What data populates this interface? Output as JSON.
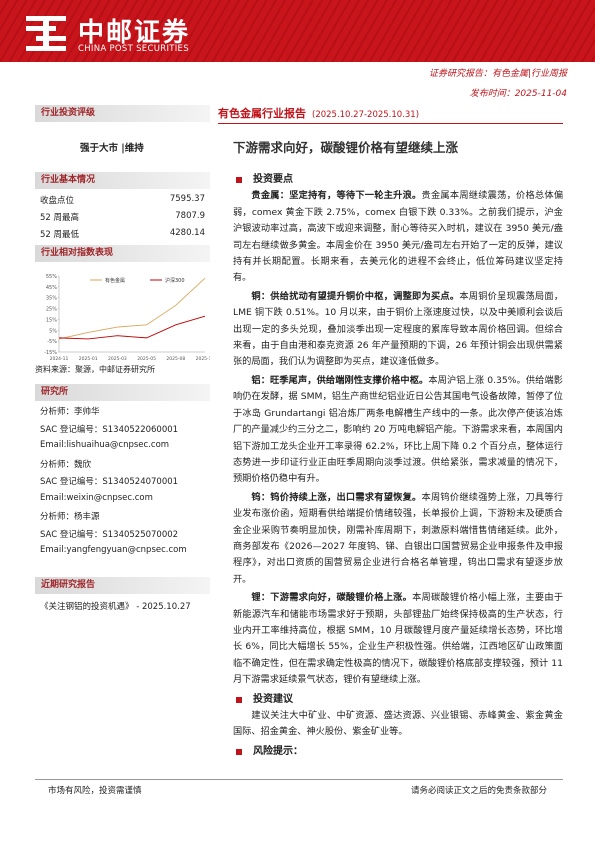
{
  "header": {
    "logo_cn": "中邮证券",
    "logo_en": "CHINA POST SECURITIES",
    "report_type": "证券研究报告：有色金属|行业周报",
    "publish_date": "发布时间：2025-11-04"
  },
  "sidebar": {
    "rating": {
      "heading": "行业投资评级",
      "value": "强于大市 |维持"
    },
    "basics": {
      "heading": "行业基本情况",
      "rows": [
        [
          "收盘点位",
          "7595.37"
        ],
        [
          "52 周最高",
          "7807.9"
        ],
        [
          "52 周最低",
          "4280.14"
        ]
      ]
    },
    "performance": {
      "heading": "行业相对指数表现",
      "source": "资料来源：聚源，中邮证券研究所"
    },
    "analysts": {
      "heading": "研究所",
      "lines": [
        "分析师：李帅华",
        "SAC 登记编号：S1340522060001",
        "Email:lishuaihua@cnpsec.com",
        "分析师：魏欣",
        "SAC 登记编号：S1340524070001",
        "Email:weixin@cnpsec.com",
        "分析师：杨丰源",
        "SAC 登记编号：S1340525070002",
        "Email:yangfengyuan@cnpsec.com"
      ]
    },
    "recent": {
      "heading": "近期研究报告",
      "items": [
        "《关注钢铝的投资机遇》 - 2025.10.27"
      ]
    }
  },
  "chart_data": {
    "type": "line",
    "categories": [
      "2024-11",
      "2025-01",
      "2025-03",
      "2025-05",
      "2025-08",
      "2025-10"
    ],
    "series": [
      {
        "name": "有色金属",
        "color": "#d9a55a",
        "values": [
          -3,
          3,
          8,
          10,
          28,
          53
        ]
      },
      {
        "name": "沪深300",
        "color": "#c00000",
        "values": [
          -2,
          -3,
          0,
          -2,
          10,
          18
        ]
      }
    ],
    "ylim": [
      -15,
      55
    ],
    "yticks": [
      {
        "value": 55,
        "label": "55%"
      },
      {
        "value": 45,
        "label": "45%"
      },
      {
        "value": 35,
        "label": "35%"
      },
      {
        "value": 25,
        "label": "25%"
      },
      {
        "value": 15,
        "label": "15%"
      },
      {
        "value": 5,
        "label": "5%"
      },
      {
        "value": -5,
        "label": "-5%"
      },
      {
        "value": -15,
        "label": "-15%"
      }
    ],
    "legend": "top"
  },
  "main": {
    "bar_title": "有色金属行业报告",
    "bar_period": "(2025.10.27-2025.10.31)",
    "headline": "下游需求向好，碳酸锂价格有望继续上涨",
    "sections": [
      {
        "heading": "投资要点",
        "paragraphs": [
          {
            "lead": "贵金属：坚定持有，等待下一轮主升浪。",
            "text": "贵金属本周继续震荡，价格总体偏弱，comex 黄金下跌 2.75%，comex 白银下跌 0.33%。之前我们提示，沪金沪银波动率过高，高波下或迎来调整，耐心等待买入时机，建议在 3950 美元/盎司左右继续做多黄金。本周金价在 3950 美元/盎司左右开始了一定的反弹，建议持有并长期配置。长期来看，去美元化的进程不会终止，低位筹码建议坚定持有。"
          },
          {
            "lead": "铜：供给扰动有望提升铜价中枢，调整即为买点。",
            "text": "本周铜价呈现震荡局面，LME 铜下跌 0.51%。10 月以来，由于铜价上涨速度过快，以及中美顺利会谈后出现一定的多头兑现，叠加淡季出现一定程度的累库导致本周价格回调。但综合来看，由于自由港和泰克资源 26 年产量预期的下调，26 年预计铜会出现供需紧张的局面，我们认为调整即为买点，建议逢低做多。"
          },
          {
            "lead": "铝：旺季尾声，供给端刚性支撑价格中枢。",
            "text": "本周沪铝上涨 0.35%。供给端影响仍在发酵，据 SMM，铝生产商世纪铝业近日公告其国电气设备故障，暂停了位于冰岛 Grundartangi 铝冶炼厂两条电解槽生产线中的一条。此次停产使该冶炼厂的产量减少约三分之二，影响约 20 万吨电解铝产能。下游需求来看，本周国内铝下游加工龙头企业开工率录得 62.2%，环比上周下降 0.2 个百分点，整体运行态势进一步印证行业正由旺季周期向淡季过渡。供给紧张，需求减量的情况下，预期价格仍稳中有升。"
          },
          {
            "lead": "钨：钨价持续上涨，出口需求有望恢复。",
            "text": "本周钨价继续强势上涨，刀具等行业发布涨价函，短期看供给端提价情绪较强，长单报价上调，下游粉末及硬质合金企业采购节奏明显加快，刚需补库周期下，刺激原料端惜售情绪延续。此外，商务部发布《2026—2027 年度钨、锑、白银出口国营贸易企业申报条件及申报程序》，对出口资质的国营贸易企业进行合格名单管理，钨出口需求有望逐步放开。"
          },
          {
            "lead": "锂：下游需求向好，碳酸锂价格上涨。",
            "text": "本周碳酸锂价格小幅上涨，主要由于新能源汽车和储能市场需求好于预期，头部锂盐厂始终保持极高的生产状态，行业内开工率维持高位，根据 SMM，10 月碳酸锂月度产量延续增长态势，环比增长 6%，同比大幅增长 55%，企业生产积极性强。供给端，江西地区矿山政策面临不确定性，但在需求确定性极高的情况下，碳酸锂价格底部支撑较强，预计 11 月下游需求延续景气状态，锂价有望继续上涨。"
          }
        ]
      },
      {
        "heading": "投资建议",
        "paragraphs": [
          {
            "text": "建议关注大中矿业、中矿资源、盛达资源、兴业银锡、赤峰黄金、紫金黄金国际、招金黄金、神火股份、紫金矿业等。"
          }
        ]
      },
      {
        "heading": "风险提示：",
        "paragraphs": []
      }
    ]
  },
  "footer": {
    "left": "市场有风险，投资需谨慎",
    "right": "请务必阅读正文之后的免责条款部分"
  }
}
